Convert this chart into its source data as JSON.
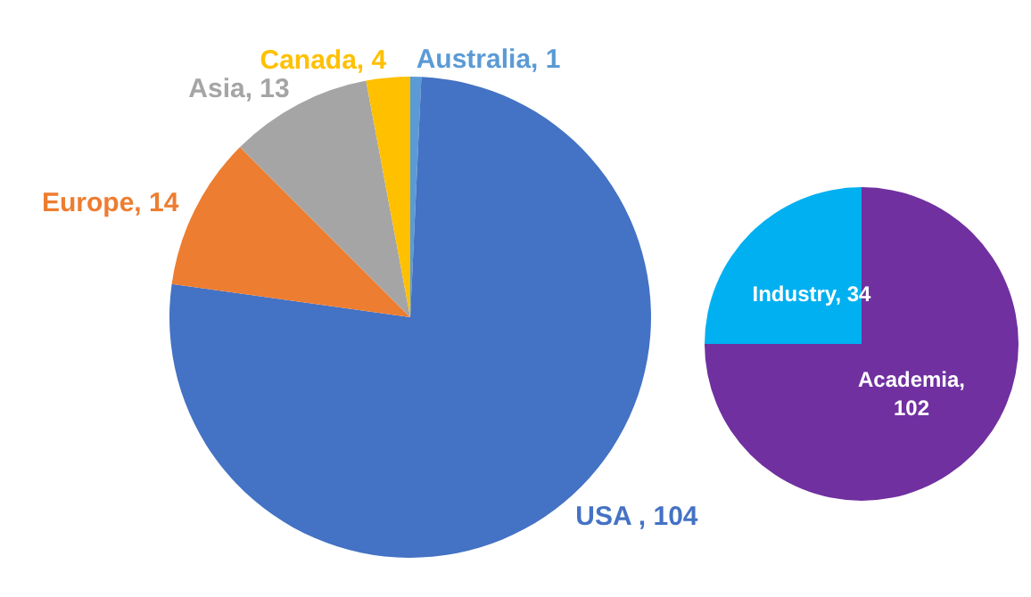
{
  "chart_data": [
    {
      "type": "pie",
      "categories": [
        null,
        null,
        null,
        null,
        null
      ],
      "values": [
        1,
        104,
        14,
        13,
        4
      ],
      "colors": [
        "#5b9bd5",
        "#4472c4",
        "#ed7d31",
        "#a5a5a5",
        "#ffc000"
      ],
      "value_labels": [
        "Australia, 1",
        "USA , 104",
        "Europe, 14",
        "Asia, 13",
        "Canada, 4"
      ]
    },
    {
      "type": "pie",
      "categories": [
        null,
        null
      ],
      "values": [
        102,
        34
      ],
      "colors": [
        "#7030a0",
        "#00b0f0"
      ],
      "value_labels": [
        "Academia, 102",
        "Industry, 34"
      ]
    }
  ]
}
